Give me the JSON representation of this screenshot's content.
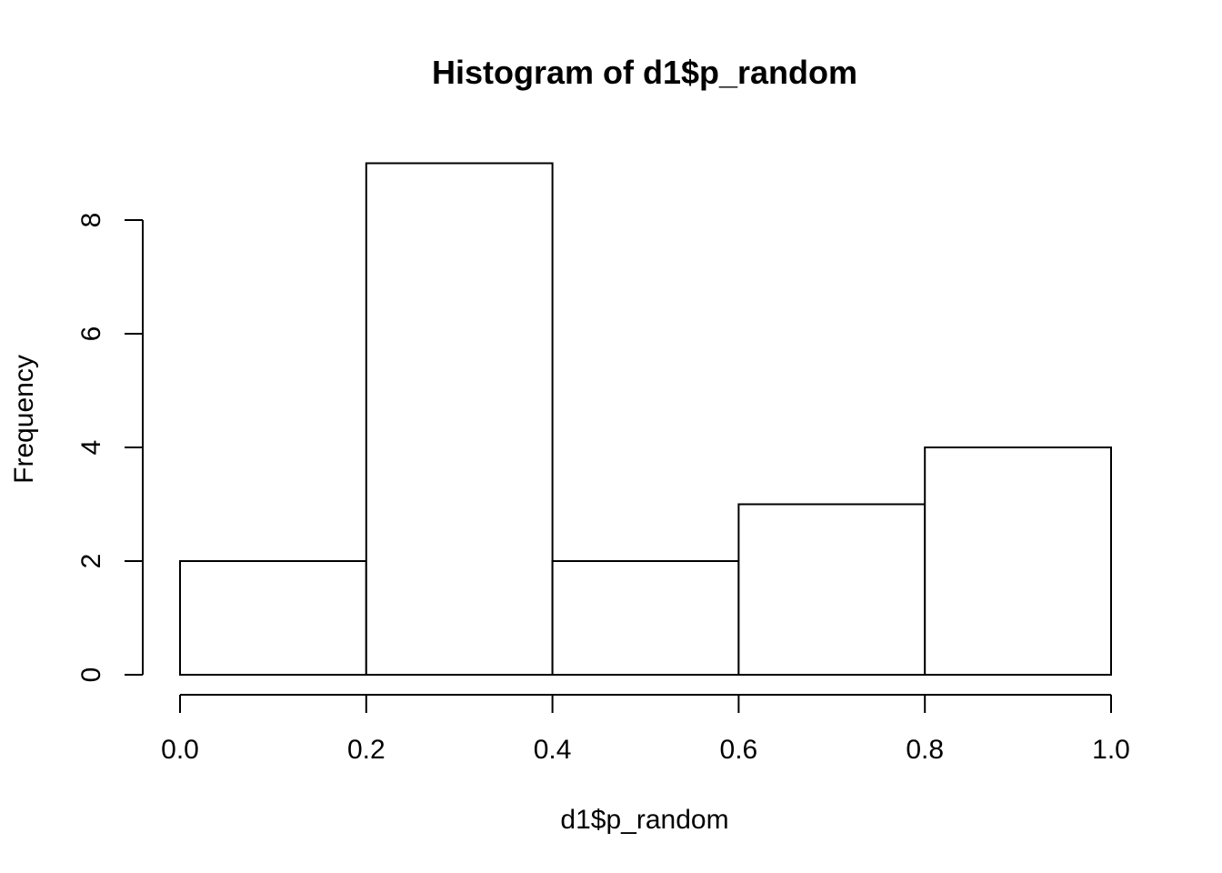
{
  "chart_data": {
    "type": "bar",
    "title": "Histogram of d1$p_random",
    "xlabel": "d1$p_random",
    "ylabel": "Frequency",
    "bins": [
      {
        "x0": 0.0,
        "x1": 0.2,
        "count": 2
      },
      {
        "x0": 0.2,
        "x1": 0.4,
        "count": 9
      },
      {
        "x0": 0.4,
        "x1": 0.6,
        "count": 2
      },
      {
        "x0": 0.6,
        "x1": 0.8,
        "count": 3
      },
      {
        "x0": 0.8,
        "x1": 1.0,
        "count": 4
      }
    ],
    "xlim": [
      0.0,
      1.0
    ],
    "ylim": [
      0,
      9
    ],
    "x_ticks": [
      0.0,
      0.2,
      0.4,
      0.6,
      0.8,
      1.0
    ],
    "x_tick_labels": [
      "0.0",
      "0.2",
      "0.4",
      "0.6",
      "0.8",
      "1.0"
    ],
    "y_ticks": [
      0,
      2,
      4,
      6,
      8
    ],
    "y_tick_labels": [
      "0",
      "2",
      "4",
      "6",
      "8"
    ],
    "grid": false,
    "legend": "none"
  }
}
